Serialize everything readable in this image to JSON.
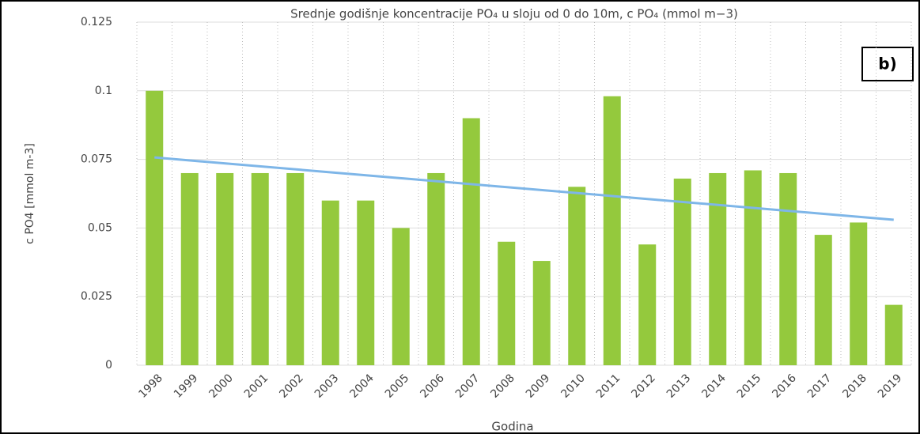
{
  "chart_data": {
    "type": "bar",
    "title": "Srednje godišnje koncentracije PO₄ u sloju od 0 do 10m, c PO₄ (mmol m−3)",
    "panel_label": "b)",
    "x_label": "Godina",
    "y_label": "c PO4 [mmol m-3]",
    "categories": [
      "1998",
      "1999",
      "2000",
      "2001",
      "2002",
      "2003",
      "2004",
      "2005",
      "2006",
      "2007",
      "2008",
      "2009",
      "2010",
      "2011",
      "2012",
      "2013",
      "2014",
      "2015",
      "2016",
      "2017",
      "2018",
      "2019"
    ],
    "values": [
      0.1,
      0.07,
      0.07,
      0.07,
      0.07,
      0.06,
      0.06,
      0.05,
      0.07,
      0.09,
      0.045,
      0.038,
      0.065,
      0.098,
      0.044,
      0.068,
      0.07,
      0.071,
      0.07,
      0.0475,
      0.052,
      0.022
    ],
    "color": "#94c93d",
    "trend_line": {
      "color": "#7eb6e8",
      "values": [
        0.0757,
        0.053
      ]
    },
    "ylim": [
      0,
      0.125
    ],
    "yticks": [
      0,
      0.025,
      0.05,
      0.075,
      0.1,
      0.125
    ],
    "grid": true
  }
}
